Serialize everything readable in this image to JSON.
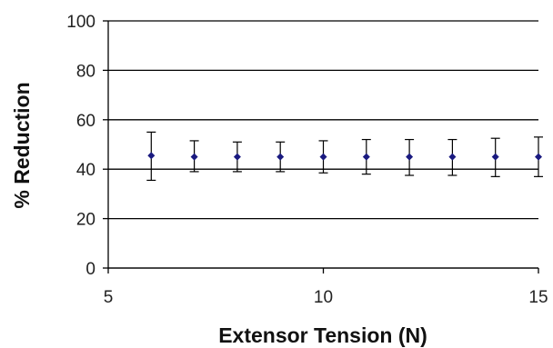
{
  "chart_data": {
    "type": "scatter",
    "xlabel": "Extensor Tension (N)",
    "ylabel": "% Reduction",
    "xlim": [
      5,
      15
    ],
    "ylim": [
      0,
      100
    ],
    "xticks": [
      5,
      10,
      15
    ],
    "yticks": [
      0,
      20,
      40,
      60,
      80,
      100
    ],
    "grid": "horizontal",
    "series": [
      {
        "color": "#1a1a80",
        "marker": "diamond",
        "points": [
          {
            "x": 6,
            "y": 45.5,
            "err_low": 35.5,
            "err_high": 55
          },
          {
            "x": 7,
            "y": 45,
            "err_low": 39,
            "err_high": 51.5
          },
          {
            "x": 8,
            "y": 45,
            "err_low": 39,
            "err_high": 51
          },
          {
            "x": 9,
            "y": 45,
            "err_low": 39,
            "err_high": 51
          },
          {
            "x": 10,
            "y": 45,
            "err_low": 38.5,
            "err_high": 51.5
          },
          {
            "x": 11,
            "y": 45,
            "err_low": 38,
            "err_high": 52
          },
          {
            "x": 12,
            "y": 45,
            "err_low": 37.5,
            "err_high": 52
          },
          {
            "x": 13,
            "y": 45,
            "err_low": 37.5,
            "err_high": 52
          },
          {
            "x": 14,
            "y": 45,
            "err_low": 37,
            "err_high": 52.5
          },
          {
            "x": 15,
            "y": 45,
            "err_low": 37,
            "err_high": 53
          }
        ]
      }
    ]
  }
}
